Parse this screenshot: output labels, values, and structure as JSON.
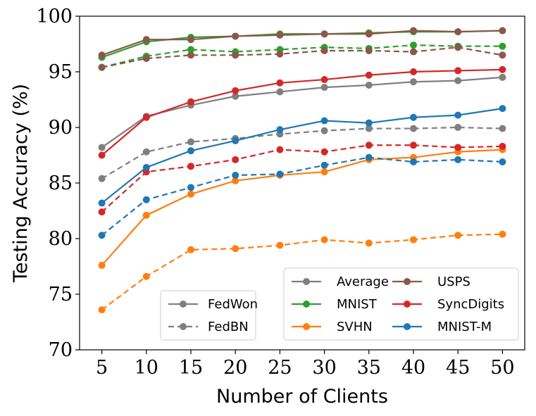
{
  "chart_data": {
    "type": "line",
    "xlabel": "Number of Clients",
    "ylabel": "Testing Accuracy (%)",
    "x": [
      5,
      10,
      15,
      20,
      25,
      30,
      35,
      40,
      45,
      50
    ],
    "xticks": [
      "5",
      "10",
      "15",
      "20",
      "25",
      "30",
      "35",
      "40",
      "45",
      "50"
    ],
    "ylim": [
      70,
      100
    ],
    "yticks": [
      "70",
      "75",
      "80",
      "85",
      "90",
      "95",
      "100"
    ],
    "ytick_values": [
      70,
      75,
      80,
      85,
      90,
      95,
      100
    ],
    "grid": false,
    "series": [
      {
        "name": "Average",
        "method": "FedWon",
        "color": "#7f7f7f",
        "values": [
          88.2,
          91.0,
          92.0,
          92.8,
          93.2,
          93.6,
          93.8,
          94.1,
          94.2,
          94.5
        ]
      },
      {
        "name": "Average",
        "method": "FedBN",
        "color": "#7f7f7f",
        "values": [
          85.4,
          87.8,
          88.7,
          89.0,
          89.4,
          89.7,
          89.9,
          89.9,
          90.0,
          89.9
        ]
      },
      {
        "name": "MNIST",
        "method": "FedWon",
        "color": "#2ca02c",
        "values": [
          96.3,
          97.7,
          98.1,
          98.2,
          98.4,
          98.4,
          98.5,
          98.6,
          98.6,
          98.7
        ]
      },
      {
        "name": "MNIST",
        "method": "FedBN",
        "color": "#2ca02c",
        "values": [
          95.4,
          96.4,
          97.0,
          96.8,
          97.0,
          97.2,
          97.1,
          97.4,
          97.3,
          97.3
        ]
      },
      {
        "name": "SVHN",
        "method": "FedWon",
        "color": "#ff7f0e",
        "values": [
          77.6,
          82.1,
          84.0,
          85.2,
          85.7,
          86.0,
          87.1,
          87.3,
          87.8,
          88.0
        ]
      },
      {
        "name": "SVHN",
        "method": "FedBN",
        "color": "#ff7f0e",
        "values": [
          73.6,
          76.6,
          79.0,
          79.1,
          79.4,
          79.9,
          79.6,
          79.9,
          80.3,
          80.4
        ]
      },
      {
        "name": "USPS",
        "method": "FedWon",
        "color": "#8c564b",
        "values": [
          96.5,
          97.9,
          97.9,
          98.2,
          98.3,
          98.4,
          98.4,
          98.7,
          98.6,
          98.7
        ]
      },
      {
        "name": "USPS",
        "method": "FedBN",
        "color": "#8c564b",
        "values": [
          95.4,
          96.2,
          96.5,
          96.5,
          96.6,
          96.9,
          96.9,
          96.8,
          97.2,
          96.5
        ]
      },
      {
        "name": "SyncDigits",
        "method": "FedWon",
        "color": "#d62728",
        "values": [
          87.5,
          90.9,
          92.3,
          93.3,
          94.0,
          94.3,
          94.7,
          95.0,
          95.1,
          95.2
        ]
      },
      {
        "name": "SyncDigits",
        "method": "FedBN",
        "color": "#d62728",
        "values": [
          82.4,
          86.0,
          86.5,
          87.1,
          88.0,
          87.8,
          88.4,
          88.4,
          88.2,
          88.3
        ]
      },
      {
        "name": "MNIST-M",
        "method": "FedWon",
        "color": "#1f77b4",
        "values": [
          83.2,
          86.4,
          87.9,
          88.8,
          89.8,
          90.6,
          90.4,
          90.9,
          91.1,
          91.7
        ]
      },
      {
        "name": "MNIST-M",
        "method": "FedBN",
        "color": "#1f77b4",
        "values": [
          80.3,
          83.5,
          84.6,
          85.7,
          85.8,
          86.6,
          87.3,
          86.9,
          87.1,
          86.9
        ]
      }
    ],
    "legend_methods": [
      {
        "label": "FedWon",
        "style": "solid",
        "color": "#7f7f7f"
      },
      {
        "label": "FedBN",
        "style": "dashed",
        "color": "#7f7f7f"
      }
    ],
    "legend_datasets": [
      {
        "label": "Average",
        "color": "#7f7f7f"
      },
      {
        "label": "USPS",
        "color": "#8c564b"
      },
      {
        "label": "MNIST",
        "color": "#2ca02c"
      },
      {
        "label": "SyncDigits",
        "color": "#d62728"
      },
      {
        "label": "SVHN",
        "color": "#ff7f0e"
      },
      {
        "label": "MNIST-M",
        "color": "#1f77b4"
      }
    ],
    "legend_methods_placement": "lower-center",
    "legend_datasets_placement": "lower-right"
  }
}
